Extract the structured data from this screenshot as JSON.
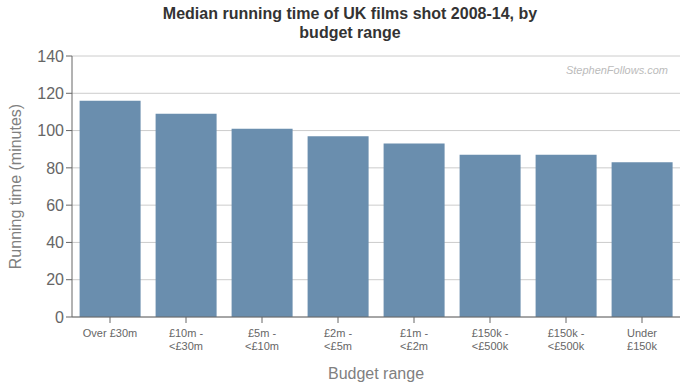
{
  "chart_data": {
    "type": "bar",
    "title": "Median running time of UK films shot 2008-14, by\nbudget range",
    "categories": [
      "Over £30m",
      "£10m -\n<£30m",
      "£5m -\n<£10m",
      "£2m -\n<£5m",
      "£1m -\n<£2m",
      "£150k -\n<£500k",
      "£150k -\n<£500k",
      "Under\n£150k"
    ],
    "values": [
      116,
      109,
      101,
      97,
      93,
      87,
      87,
      83
    ],
    "color": "#6a8eae",
    "xlabel": "Budget range",
    "ylabel": "Running time (minutes)",
    "ylim": [
      0,
      140
    ],
    "yticks": [
      0,
      20,
      40,
      60,
      80,
      100,
      120,
      140
    ],
    "grid": true,
    "annotations": [
      "StephenFollows.com"
    ]
  }
}
